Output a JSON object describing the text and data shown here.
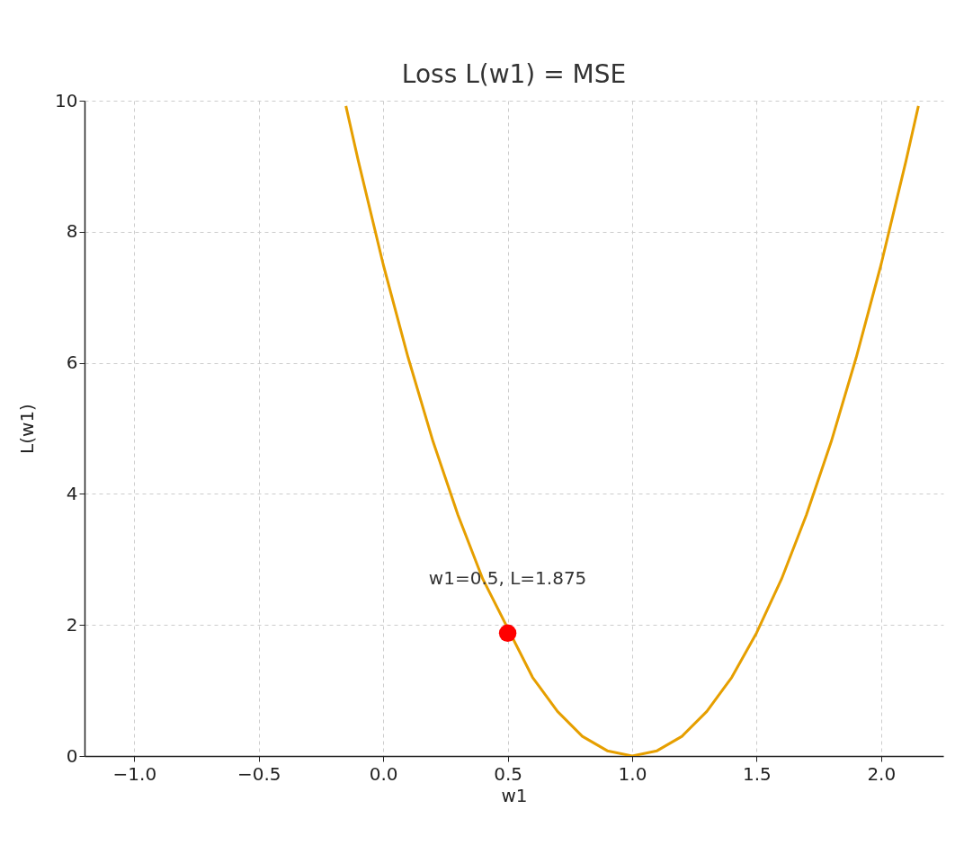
{
  "chart_data": {
    "type": "line",
    "title": "Loss L(w1) = MSE",
    "xlabel": "w1",
    "ylabel": "L(w1)",
    "xlim": [
      -1.2,
      2.25
    ],
    "ylim": [
      0,
      10
    ],
    "xticks": [
      {
        "value": -1,
        "label": "−1.0"
      },
      {
        "value": -0.5,
        "label": "−0.5"
      },
      {
        "value": 0,
        "label": "0.0"
      },
      {
        "value": 0.5,
        "label": "0.5"
      },
      {
        "value": 1,
        "label": "1.0"
      },
      {
        "value": 1.5,
        "label": "1.5"
      },
      {
        "value": 2,
        "label": "2.0"
      }
    ],
    "yticks": [
      0,
      2,
      4,
      6,
      8,
      10
    ],
    "grid": true,
    "line_style": "solid",
    "series": [
      {
        "color": "#e69f00",
        "x": [
          -0.15,
          -0.1,
          0,
          0.1,
          0.2,
          0.3,
          0.4,
          0.6,
          0.7,
          0.8,
          0.9,
          1.0,
          1.1,
          1.2,
          1.3,
          1.4,
          1.5,
          1.6,
          1.7,
          1.8,
          1.9,
          2.0,
          2.1,
          2.15
        ],
        "values": [
          9.92,
          9.08,
          7.5,
          6.08,
          4.8,
          3.68,
          2.7,
          1.2,
          0.68,
          0.3,
          0.08,
          0,
          0.08,
          0.3,
          0.68,
          1.2,
          1.88,
          2.7,
          3.68,
          4.8,
          6.08,
          7.5,
          9.08,
          9.92
        ]
      },
      {
        "type": "scatter",
        "color": "#ff0000",
        "marker": "circle",
        "x": [
          0.5
        ],
        "values": [
          1.875
        ]
      }
    ],
    "annotations": [
      {
        "text": "w1=0.5, L=1.875",
        "x": 0.5,
        "y": 1.875
      }
    ]
  }
}
